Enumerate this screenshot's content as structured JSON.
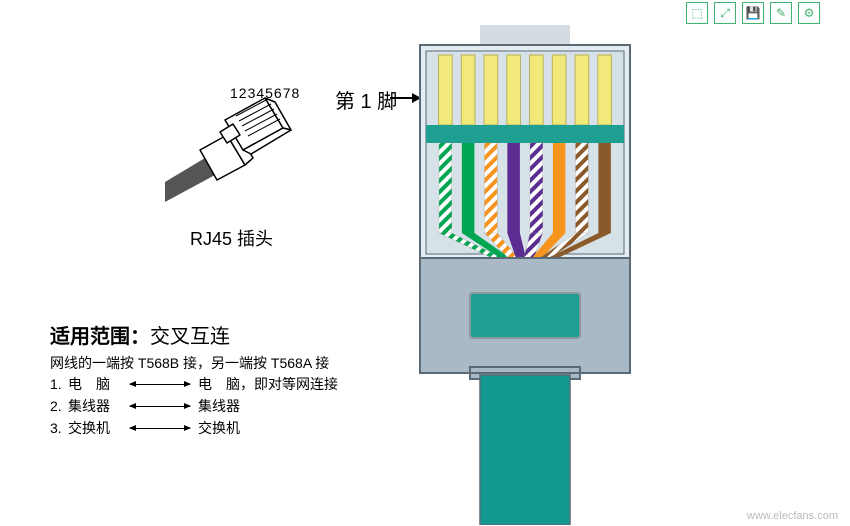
{
  "toolbar_icons": [
    "download",
    "expand",
    "save",
    "edit",
    "settings"
  ],
  "small_plug": {
    "numbers": "12345678",
    "label": "RJ45 插头"
  },
  "pin1_label": "第 1 脚",
  "scope": {
    "prefix": "适用范围：",
    "value": "交叉互连",
    "rule": "网线的一端按 T568B 接，另一端按 T568A 接",
    "items": [
      {
        "n": "1.",
        "left": "电　脑",
        "right": "电　脑，即对等网连接"
      },
      {
        "n": "2.",
        "left": "集线器",
        "right": "集线器"
      },
      {
        "n": "3.",
        "left": "交换机",
        "right": "交换机"
      }
    ]
  },
  "connector": {
    "housing_fill": "#a9b9c5",
    "housing_stroke": "#5a6a76",
    "clear_fill": "#e2ecf1",
    "inner_fill": "#d7e2e8",
    "band_fill": "#1f9e92",
    "cable_fill": "#129a92",
    "gold_tip": "#f1e97a",
    "wires": [
      {
        "stripe": true,
        "color": "#00a651"
      },
      {
        "stripe": false,
        "color": "#00a651"
      },
      {
        "stripe": true,
        "color": "#f7941d"
      },
      {
        "stripe": false,
        "color": "#5b2d90"
      },
      {
        "stripe": true,
        "color": "#5b2d90"
      },
      {
        "stripe": false,
        "color": "#f7941d"
      },
      {
        "stripe": true,
        "color": "#8b5a2b"
      },
      {
        "stripe": false,
        "color": "#8b5a2b"
      }
    ]
  },
  "watermark_url": "www.elecfans.com"
}
